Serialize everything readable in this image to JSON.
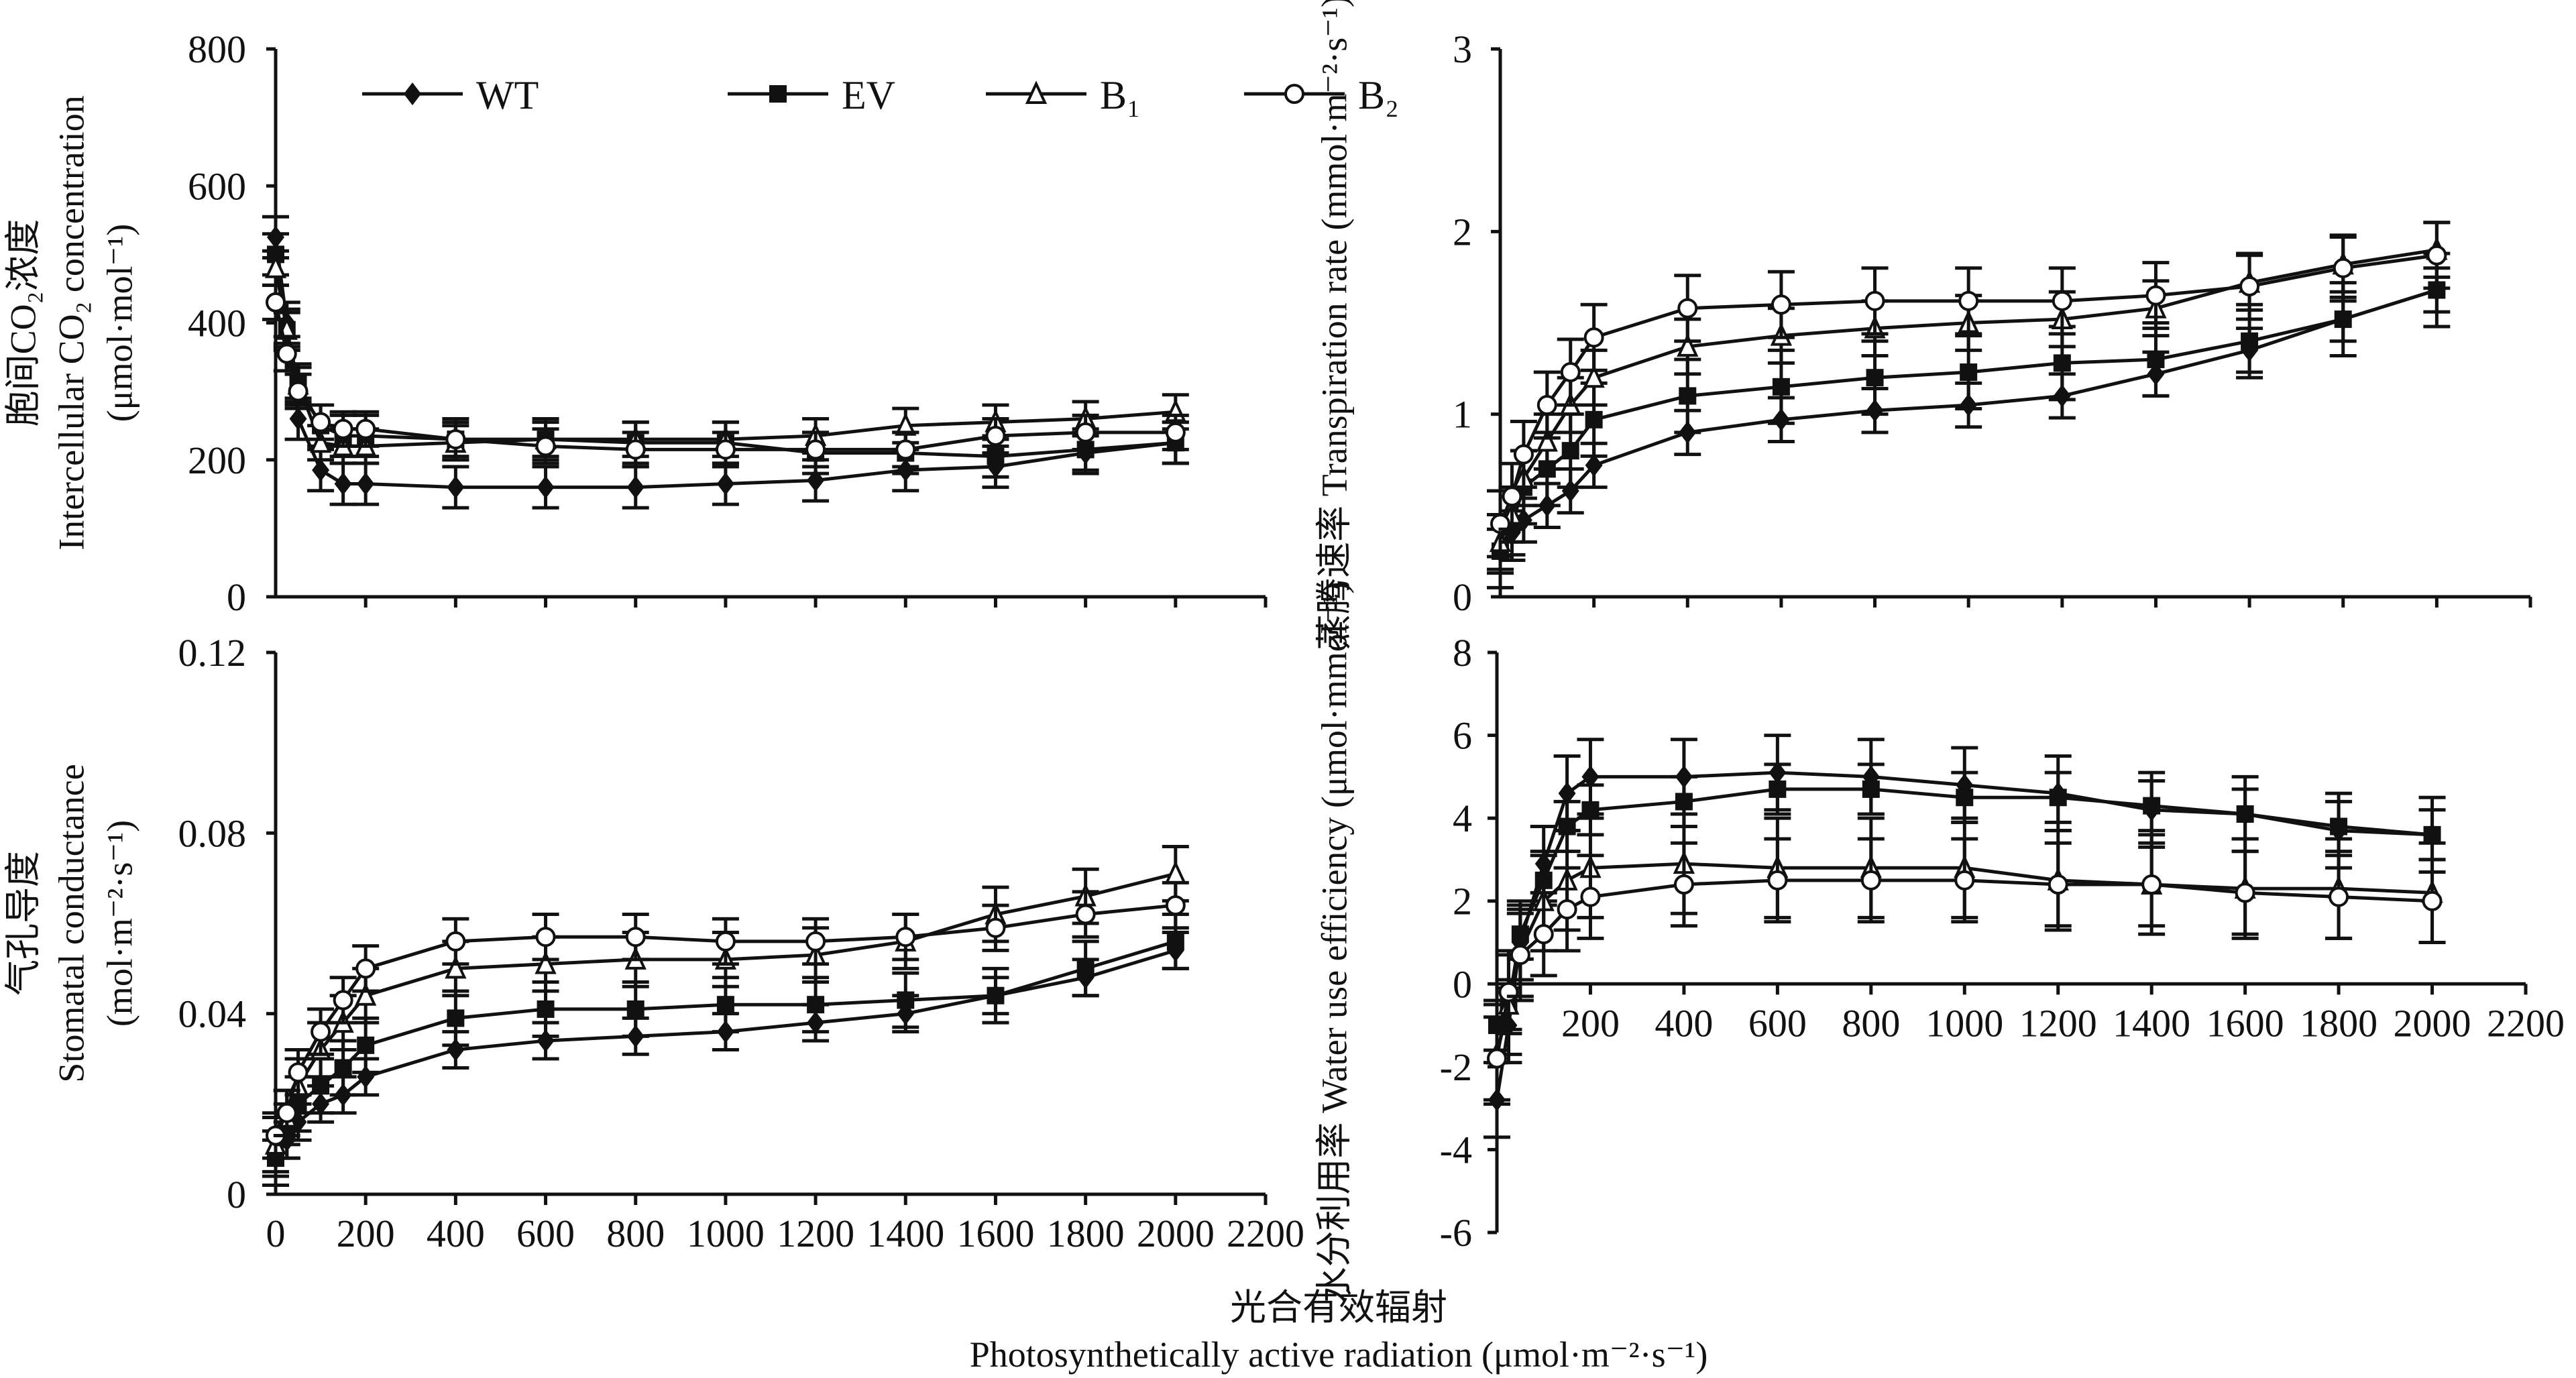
{
  "chart_data": [
    {
      "type": "line",
      "panel": "top-left",
      "ylabel_lines": [
        "胞间CO₂浓度",
        "Intercellular CO₂ concentration",
        "(μmol·mol⁻¹)"
      ],
      "ylim": [
        0,
        800
      ],
      "yticks": [
        0,
        200,
        400,
        600,
        800
      ],
      "xlim": [
        0,
        2200
      ],
      "xticks_labeled": false,
      "x": [
        0,
        25,
        50,
        100,
        150,
        200,
        400,
        600,
        800,
        1000,
        1200,
        1400,
        1600,
        1800,
        2000
      ],
      "series": [
        {
          "name": "WT",
          "marker": "diamond-filled",
          "error": 30,
          "values": [
            525,
            400,
            260,
            185,
            165,
            165,
            160,
            160,
            160,
            165,
            170,
            185,
            190,
            210,
            225
          ]
        },
        {
          "name": "EV",
          "marker": "square-filled",
          "error": 30,
          "values": [
            500,
            390,
            310,
            250,
            235,
            235,
            230,
            230,
            225,
            225,
            210,
            210,
            205,
            215,
            225
          ]
        },
        {
          "name": "B₁",
          "marker": "triangle-open",
          "error": 25,
          "values": [
            480,
            390,
            310,
            225,
            220,
            220,
            225,
            230,
            230,
            230,
            235,
            250,
            255,
            260,
            270
          ]
        },
        {
          "name": "B₂",
          "marker": "circle-open",
          "error": 25,
          "values": [
            430,
            355,
            300,
            255,
            245,
            245,
            230,
            220,
            215,
            215,
            215,
            215,
            235,
            240,
            240
          ]
        }
      ],
      "legend": "top-left"
    },
    {
      "type": "line",
      "panel": "top-right",
      "ylabel_lines": [
        "蒸腾速率 Transpiration rate (mmol·m⁻²·s⁻¹)"
      ],
      "ylim": [
        0,
        3
      ],
      "yticks": [
        0,
        1,
        2,
        3
      ],
      "xlim": [
        0,
        2200
      ],
      "xticks_labeled": false,
      "x": [
        0,
        25,
        50,
        100,
        150,
        200,
        400,
        600,
        800,
        1000,
        1200,
        1400,
        1600,
        1800,
        2000
      ],
      "series": [
        {
          "name": "WT",
          "marker": "diamond-filled",
          "error": 0.12,
          "values": [
            0.25,
            0.35,
            0.42,
            0.5,
            0.58,
            0.72,
            0.9,
            0.97,
            1.02,
            1.05,
            1.1,
            1.22,
            1.35,
            1.52,
            1.68
          ]
        },
        {
          "name": "EV",
          "marker": "square-filled",
          "error": 0.2,
          "values": [
            0.25,
            0.4,
            0.6,
            0.7,
            0.8,
            0.97,
            1.1,
            1.15,
            1.2,
            1.23,
            1.28,
            1.3,
            1.4,
            1.52,
            1.68
          ]
        },
        {
          "name": "B₁",
          "marker": "triangle-open",
          "error": 0.15,
          "values": [
            0.3,
            0.45,
            0.65,
            0.85,
            1.05,
            1.2,
            1.37,
            1.43,
            1.47,
            1.5,
            1.52,
            1.58,
            1.72,
            1.82,
            1.9
          ]
        },
        {
          "name": "B₂",
          "marker": "circle-open",
          "error": 0.18,
          "values": [
            0.4,
            0.55,
            0.78,
            1.05,
            1.23,
            1.42,
            1.58,
            1.6,
            1.62,
            1.62,
            1.62,
            1.65,
            1.7,
            1.8,
            1.87
          ]
        }
      ]
    },
    {
      "type": "line",
      "panel": "bottom-left",
      "ylabel_lines": [
        "气孔导度",
        "Stomatal conductance",
        "(mol·m⁻²·s⁻¹)"
      ],
      "ylim": [
        0,
        0.12
      ],
      "yticks": [
        0,
        0.04,
        0.08,
        0.12
      ],
      "xlim": [
        0,
        2200
      ],
      "xticks_labeled": true,
      "xticks": [
        0,
        200,
        400,
        600,
        800,
        1000,
        1200,
        1400,
        1600,
        1800,
        2000,
        2200
      ],
      "x": [
        0,
        25,
        50,
        100,
        150,
        200,
        400,
        600,
        800,
        1000,
        1200,
        1400,
        1600,
        1800,
        2000
      ],
      "series": [
        {
          "name": "WT",
          "marker": "diamond-filled",
          "error": 0.004,
          "values": [
            0.008,
            0.012,
            0.016,
            0.02,
            0.022,
            0.026,
            0.032,
            0.034,
            0.035,
            0.036,
            0.038,
            0.04,
            0.044,
            0.048,
            0.054
          ]
        },
        {
          "name": "EV",
          "marker": "square-filled",
          "error": 0.006,
          "values": [
            0.008,
            0.014,
            0.02,
            0.024,
            0.028,
            0.033,
            0.039,
            0.041,
            0.041,
            0.042,
            0.042,
            0.043,
            0.044,
            0.05,
            0.056
          ]
        },
        {
          "name": "B₁",
          "marker": "triangle-open",
          "error": 0.006,
          "values": [
            0.011,
            0.017,
            0.024,
            0.032,
            0.038,
            0.044,
            0.05,
            0.051,
            0.052,
            0.052,
            0.053,
            0.056,
            0.062,
            0.066,
            0.071
          ]
        },
        {
          "name": "B₂",
          "marker": "circle-open",
          "error": 0.005,
          "values": [
            0.013,
            0.018,
            0.027,
            0.036,
            0.043,
            0.05,
            0.056,
            0.057,
            0.057,
            0.056,
            0.056,
            0.057,
            0.059,
            0.062,
            0.064
          ]
        }
      ]
    },
    {
      "type": "line",
      "panel": "bottom-right",
      "ylabel_lines": [
        "水分利用率 Water use efficiency (μmol·mmol⁻¹)"
      ],
      "ylim": [
        -6,
        8
      ],
      "yticks": [
        -6,
        -4,
        -2,
        0,
        2,
        4,
        6,
        8
      ],
      "xlim": [
        0,
        2200
      ],
      "xticks_labeled": true,
      "xticks": [
        200,
        400,
        600,
        800,
        1000,
        1200,
        1400,
        1600,
        1800,
        2000,
        2200
      ],
      "x": [
        0,
        25,
        50,
        100,
        150,
        200,
        400,
        600,
        800,
        1000,
        1200,
        1400,
        1600,
        1800,
        2000
      ],
      "series": [
        {
          "name": "WT",
          "marker": "diamond-filled",
          "error": 0.9,
          "values": [
            -2.8,
            -1,
            1,
            2.9,
            4.6,
            5,
            5,
            5.1,
            5,
            4.8,
            4.6,
            4.2,
            4.1,
            3.7,
            3.6
          ]
        },
        {
          "name": "EV",
          "marker": "square-filled",
          "error": 0.6,
          "values": [
            -1,
            -0.5,
            1.2,
            2.5,
            3.8,
            4.2,
            4.4,
            4.7,
            4.7,
            4.5,
            4.5,
            4.3,
            4.1,
            3.8,
            3.6
          ]
        },
        {
          "name": "B₁",
          "marker": "triangle-open",
          "error": 1.2,
          "values": [
            -1.7,
            -0.5,
            0.8,
            2,
            2.5,
            2.8,
            2.9,
            2.8,
            2.8,
            2.8,
            2.5,
            2.4,
            2.3,
            2.3,
            2.2
          ]
        },
        {
          "name": "B₂",
          "marker": "circle-open",
          "error": 1.0,
          "values": [
            -1.8,
            -0.2,
            0.7,
            1.2,
            1.8,
            2.1,
            2.4,
            2.5,
            2.5,
            2.5,
            2.4,
            2.4,
            2.2,
            2.1,
            2.0
          ]
        }
      ]
    }
  ],
  "xlabel_lines": [
    "光合有效辐射",
    "Photosynthetically active radiation (μmol·m⁻²·s⁻¹)"
  ],
  "colors": {
    "line": "#111111",
    "background": "#ffffff"
  }
}
